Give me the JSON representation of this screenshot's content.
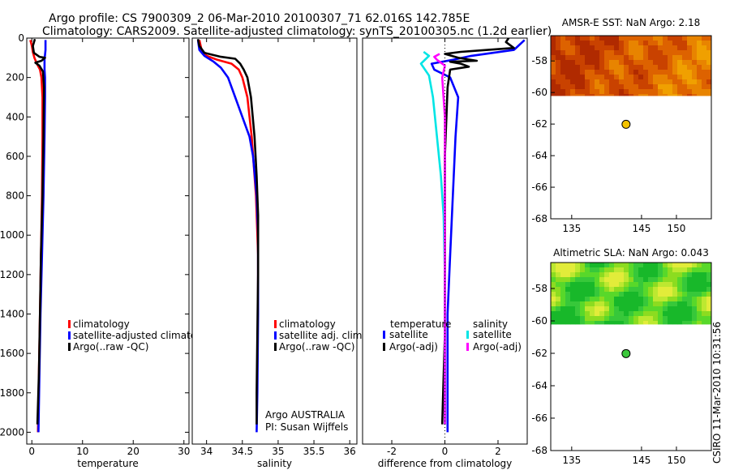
{
  "titles": {
    "line1": "Argo profile: CS 7900309_2 06-Mar-2010 20100307_71 62.016S 142.785E",
    "line2": "Climatology: CARS2009. Satellite-adjusted climatology: synTS_20100305.nc (1.2d earlier)"
  },
  "footer": {
    "side_text": "CSIRO 11-Mar-2010 10:31:56"
  },
  "colors": {
    "climatology": "#ff0000",
    "satellite": "#0000ff",
    "argo": "#000000",
    "cyan": "#00e5e5",
    "magenta": "#ff00ff"
  },
  "chart_data": [
    {
      "id": "temperature",
      "type": "line",
      "xlabel": "temperature",
      "ylabel": "",
      "xlim": [
        -1,
        31
      ],
      "ylim": [
        2060,
        0
      ],
      "xticks": [
        0,
        10,
        20,
        30
      ],
      "xtick_labels": [
        "0",
        "10",
        "20",
        "30"
      ],
      "yticks": [
        0,
        200,
        400,
        600,
        800,
        1000,
        1200,
        1400,
        1600,
        1800,
        2000
      ],
      "ytick_labels": [
        "0",
        "200",
        "400",
        "600",
        "800",
        "1000",
        "1200",
        "1400",
        "1600",
        "1800",
        "2000"
      ],
      "legend": [
        "climatology",
        "satellite-adjusted climatolog",
        "Argo(..raw -QC)"
      ],
      "series": [
        {
          "name": "climatology",
          "color": "#ff0000",
          "points": [
            [
              -0.3,
              10
            ],
            [
              0.0,
              40
            ],
            [
              0.2,
              70
            ],
            [
              0.5,
              100
            ],
            [
              1.0,
              130
            ],
            [
              1.6,
              160
            ],
            [
              1.9,
              200
            ],
            [
              2.1,
              300
            ],
            [
              2.1,
              500
            ],
            [
              2.0,
              800
            ],
            [
              1.8,
              1100
            ],
            [
              1.6,
              1400
            ],
            [
              1.4,
              1700
            ],
            [
              1.2,
              2000
            ]
          ]
        },
        {
          "name": "satellite-adjusted climatology",
          "color": "#0000ff",
          "points": [
            [
              2.7,
              10
            ],
            [
              2.7,
              60
            ],
            [
              2.5,
              110
            ],
            [
              2.5,
              160
            ],
            [
              2.6,
              200
            ],
            [
              2.6,
              300
            ],
            [
              2.5,
              500
            ],
            [
              2.3,
              800
            ],
            [
              2.0,
              1100
            ],
            [
              1.7,
              1400
            ],
            [
              1.5,
              1700
            ],
            [
              1.3,
              2000
            ]
          ]
        },
        {
          "name": "Argo(..raw -QC)",
          "color": "#000000",
          "points": [
            [
              0.6,
              5
            ],
            [
              0.2,
              40
            ],
            [
              0.4,
              75
            ],
            [
              1.5,
              95
            ],
            [
              2.6,
              100
            ],
            [
              1.9,
              115
            ],
            [
              0.7,
              125
            ],
            [
              1.5,
              140
            ],
            [
              2.2,
              170
            ],
            [
              2.4,
              250
            ],
            [
              2.3,
              500
            ],
            [
              2.1,
              800
            ],
            [
              1.8,
              1100
            ],
            [
              1.6,
              1400
            ],
            [
              1.4,
              1700
            ],
            [
              1.1,
              1960
            ]
          ]
        }
      ]
    },
    {
      "id": "salinity",
      "type": "line",
      "xlabel": "salinity",
      "ylabel": "",
      "xlim": [
        33.8,
        36.1
      ],
      "ylim": [
        2060,
        0
      ],
      "xticks": [
        34,
        34.5,
        35,
        35.5,
        36
      ],
      "xtick_labels": [
        "34",
        "34.5",
        "35",
        "35.5",
        "36"
      ],
      "yticks": [],
      "ytick_labels": [],
      "legend": [
        "climatology",
        "satellite adj. clim.",
        "Argo(..raw -QC)"
      ],
      "annotation": [
        "Argo AUSTRALIA",
        "PI: Susan Wijffels"
      ],
      "series": [
        {
          "name": "climatology",
          "color": "#ff0000",
          "points": [
            [
              33.9,
              10
            ],
            [
              33.93,
              60
            ],
            [
              34.0,
              90
            ],
            [
              34.15,
              110
            ],
            [
              34.35,
              130
            ],
            [
              34.45,
              160
            ],
            [
              34.5,
              200
            ],
            [
              34.57,
              300
            ],
            [
              34.63,
              500
            ],
            [
              34.69,
              800
            ],
            [
              34.72,
              1100
            ],
            [
              34.72,
              1400
            ]
          ]
        },
        {
          "name": "satellite adj. clim.",
          "color": "#0000ff",
          "points": [
            [
              33.88,
              10
            ],
            [
              33.9,
              60
            ],
            [
              33.97,
              90
            ],
            [
              34.1,
              120
            ],
            [
              34.2,
              150
            ],
            [
              34.3,
              200
            ],
            [
              34.4,
              300
            ],
            [
              34.5,
              400
            ],
            [
              34.6,
              500
            ],
            [
              34.65,
              600
            ],
            [
              34.7,
              800
            ],
            [
              34.72,
              1000
            ],
            [
              34.72,
              1400
            ],
            [
              34.71,
              1800
            ],
            [
              34.7,
              2000
            ]
          ]
        },
        {
          "name": "Argo(..raw -QC)",
          "color": "#000000",
          "points": [
            [
              33.88,
              5
            ],
            [
              33.9,
              40
            ],
            [
              33.97,
              75
            ],
            [
              34.2,
              95
            ],
            [
              34.4,
              105
            ],
            [
              34.47,
              130
            ],
            [
              34.52,
              160
            ],
            [
              34.57,
              200
            ],
            [
              34.62,
              300
            ],
            [
              34.67,
              500
            ],
            [
              34.7,
              700
            ],
            [
              34.72,
              900
            ],
            [
              34.72,
              1200
            ],
            [
              34.71,
              1500
            ],
            [
              34.7,
              1800
            ],
            [
              34.7,
              1960
            ]
          ]
        }
      ]
    },
    {
      "id": "difference",
      "type": "line",
      "xlabel": "difference from climatology",
      "ylabel": "",
      "xlim": [
        -3.1,
        3.1
      ],
      "ylim": [
        2060,
        0
      ],
      "xticks": [
        -2,
        0,
        2
      ],
      "xtick_labels": [
        "-2",
        "0",
        "2"
      ],
      "yticks": [],
      "ytick_labels": [],
      "legend_groups": [
        {
          "heading": "temperature",
          "items": [
            "satellite",
            "Argo(-adj)"
          ]
        },
        {
          "heading": "salinity",
          "items": [
            "satellite",
            "Argo(-adj)"
          ]
        }
      ],
      "series": [
        {
          "name": "temperature satellite",
          "color": "#0000ff",
          "points": [
            [
              3.0,
              10
            ],
            [
              2.6,
              60
            ],
            [
              1.0,
              90
            ],
            [
              0.3,
              110
            ],
            [
              -0.5,
              130
            ],
            [
              -0.4,
              160
            ],
            [
              0.2,
              200
            ],
            [
              0.5,
              300
            ],
            [
              0.4,
              500
            ],
            [
              0.3,
              800
            ],
            [
              0.2,
              1100
            ],
            [
              0.1,
              1400
            ],
            [
              0.1,
              1700
            ],
            [
              0.1,
              2000
            ]
          ]
        },
        {
          "name": "temperature Argo(-adj)",
          "color": "#000000",
          "points": [
            [
              2.4,
              0
            ],
            [
              2.3,
              20
            ],
            [
              2.6,
              50
            ],
            [
              1.4,
              62
            ],
            [
              0.6,
              70
            ],
            [
              0.0,
              80
            ],
            [
              0.5,
              100
            ],
            [
              1.2,
              115
            ],
            [
              0.2,
              120
            ],
            [
              0.6,
              130
            ],
            [
              0.9,
              145
            ],
            [
              0.2,
              160
            ],
            [
              0.1,
              250
            ],
            [
              0.0,
              600
            ],
            [
              0.0,
              1000
            ],
            [
              0.0,
              1500
            ],
            [
              -0.1,
              1960
            ]
          ]
        },
        {
          "name": "salinity satellite",
          "color": "#00e5e5",
          "points": [
            [
              -0.8,
              70
            ],
            [
              -0.6,
              90
            ],
            [
              -0.9,
              130
            ],
            [
              -0.6,
              190
            ],
            [
              -0.45,
              300
            ],
            [
              -0.3,
              500
            ],
            [
              -0.15,
              700
            ],
            [
              -0.05,
              900
            ],
            [
              0.0,
              1200
            ],
            [
              0.0,
              1600
            ],
            [
              0.0,
              1960
            ]
          ]
        },
        {
          "name": "salinity Argo(-adj)",
          "color": "#ff00ff",
          "points": [
            [
              -0.2,
              80
            ],
            [
              -0.4,
              95
            ],
            [
              -0.3,
              110
            ],
            [
              0.0,
              140
            ],
            [
              -0.1,
              200
            ],
            [
              0.0,
              400
            ],
            [
              0.0,
              1000
            ],
            [
              0.0,
              1500
            ],
            [
              0.0,
              1960
            ]
          ]
        }
      ]
    },
    {
      "id": "sst_map",
      "type": "heatmap",
      "title": "AMSR-E SST: NaN Argo: 2.18",
      "xlim": [
        132,
        155
      ],
      "ylim": [
        -68,
        -56.4
      ],
      "xticks": [
        135,
        145,
        150
      ],
      "xtick_labels": [
        "135",
        "145",
        "150"
      ],
      "yticks": [
        -58,
        -60,
        -62,
        -64,
        -66,
        -68
      ],
      "ytick_labels": [
        "-58",
        "-60",
        "-62",
        "-64",
        "-66",
        "-68"
      ],
      "data_extent_lat": [
        -60.2,
        -56.4
      ],
      "palette": [
        "#b02a00",
        "#c94200",
        "#dd6200",
        "#e88400",
        "#f0a000"
      ],
      "argo_point": {
        "lon": 142.785,
        "lat": -62.016,
        "color": "#f5c400"
      }
    },
    {
      "id": "sla_map",
      "type": "heatmap",
      "title": "Altimetric SLA: NaN Argo: 0.043",
      "xlim": [
        132,
        155
      ],
      "ylim": [
        -68,
        -56.4
      ],
      "xticks": [
        135,
        145,
        150
      ],
      "xtick_labels": [
        "135",
        "145",
        "150"
      ],
      "yticks": [
        -58,
        -60,
        -62,
        -64,
        -66,
        -68
      ],
      "ytick_labels": [
        "-58",
        "-60",
        "-62",
        "-64",
        "-66",
        "-68"
      ],
      "data_extent_lat": [
        -60.2,
        -56.4
      ],
      "palette": [
        "#18b82a",
        "#37c83a",
        "#58d82a",
        "#8cdc20",
        "#bde830",
        "#e2ec3a"
      ],
      "argo_point": {
        "lon": 142.785,
        "lat": -62.016,
        "color": "#3cc83c"
      }
    }
  ]
}
